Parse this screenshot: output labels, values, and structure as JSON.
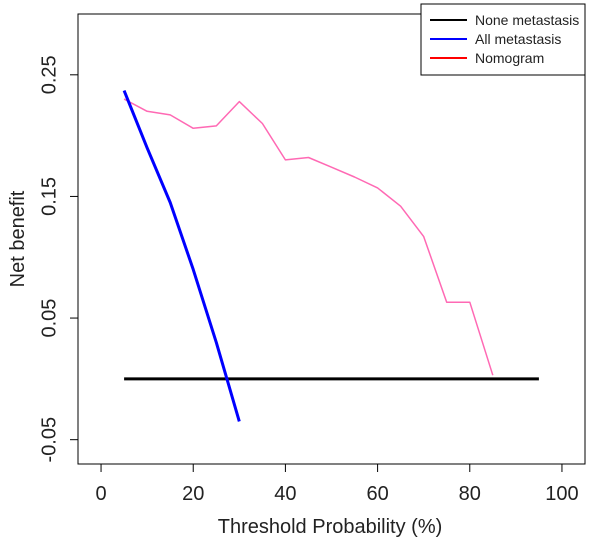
{
  "chart_data": {
    "type": "line",
    "title": "",
    "xlabel": "Threshold Probability (%)",
    "ylabel": "Net benefit",
    "xlim": [
      -5,
      105
    ],
    "ylim": [
      -0.07,
      0.3
    ],
    "xticks": [
      0,
      20,
      40,
      60,
      80,
      100
    ],
    "yticks": [
      -0.05,
      0.05,
      0.15,
      0.25
    ],
    "xtick_labels": [
      "0",
      "20",
      "40",
      "60",
      "80",
      "100"
    ],
    "ytick_labels": [
      "-0.05",
      "0.05",
      "0.15",
      "0.25"
    ],
    "legend_position": "top-right",
    "grid": false,
    "series": [
      {
        "name": "None metastasis",
        "color": "#000000",
        "x": [
          5,
          95
        ],
        "y": [
          0,
          0
        ]
      },
      {
        "name": "All metastasis",
        "color": "#0000ff",
        "x": [
          5,
          10,
          15,
          20,
          25,
          30
        ],
        "y": [
          0.237,
          0.19,
          0.145,
          0.09,
          0.03,
          -0.035
        ]
      },
      {
        "name": "Nomogram",
        "color": "#ff69b4",
        "legend_color": "#ff0000",
        "x": [
          5,
          10,
          15,
          20,
          25,
          30,
          35,
          40,
          45,
          50,
          55,
          60,
          65,
          70,
          75,
          80,
          85
        ],
        "y": [
          0.23,
          0.22,
          0.217,
          0.206,
          0.208,
          0.228,
          0.21,
          0.18,
          0.182,
          0.174,
          0.166,
          0.157,
          0.142,
          0.117,
          0.063,
          0.063,
          0.003
        ]
      }
    ]
  }
}
